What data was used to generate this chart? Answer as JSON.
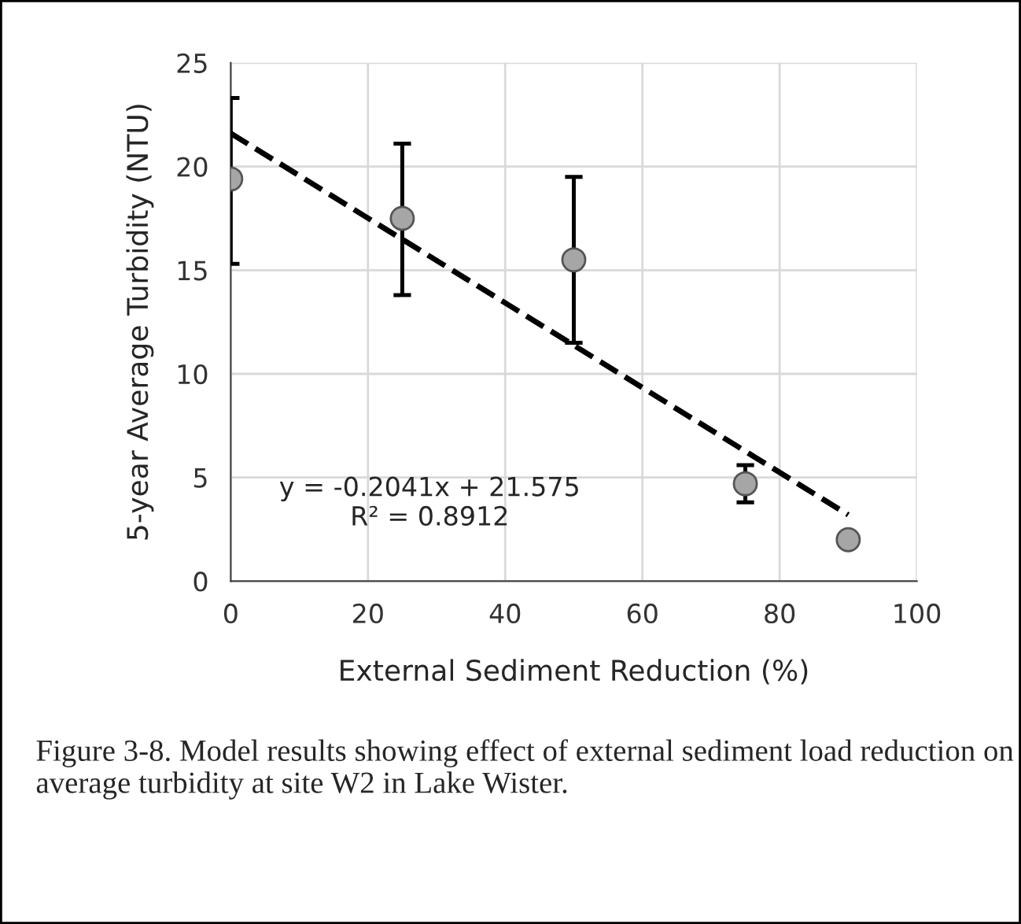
{
  "chart_data": {
    "type": "scatter",
    "xlabel": "External Sediment Reduction (%)",
    "ylabel": "5-year Average Turbidity (NTU)",
    "xlim": [
      0,
      100
    ],
    "xticks": [
      0,
      20,
      40,
      60,
      80,
      100
    ],
    "ylim": [
      0,
      25
    ],
    "yticks": [
      0,
      5,
      10,
      15,
      20,
      25
    ],
    "grid": true,
    "series": [
      {
        "marker": "circle",
        "color": "#a6a6a6",
        "x": [
          0,
          25,
          50,
          75,
          90
        ],
        "values": [
          19.4,
          17.5,
          15.5,
          4.7,
          2.0
        ],
        "errors": [
          [
            15.3,
            23.3
          ],
          [
            13.8,
            21.1
          ],
          [
            11.5,
            19.5
          ],
          [
            3.8,
            5.6
          ],
          null
        ]
      },
      {
        "type": "line",
        "color": "#000000",
        "line_style": "dashed",
        "x": [
          0,
          90
        ],
        "values": [
          21.6,
          3.2
        ]
      }
    ],
    "annotations": [
      "y = -0.2041x + 21.575\nR² = 0.8912",
      "Figure 3-8. Model results showing effect of external sediment load reduction on average turbidity at site W2 in Lake Wister."
    ]
  }
}
